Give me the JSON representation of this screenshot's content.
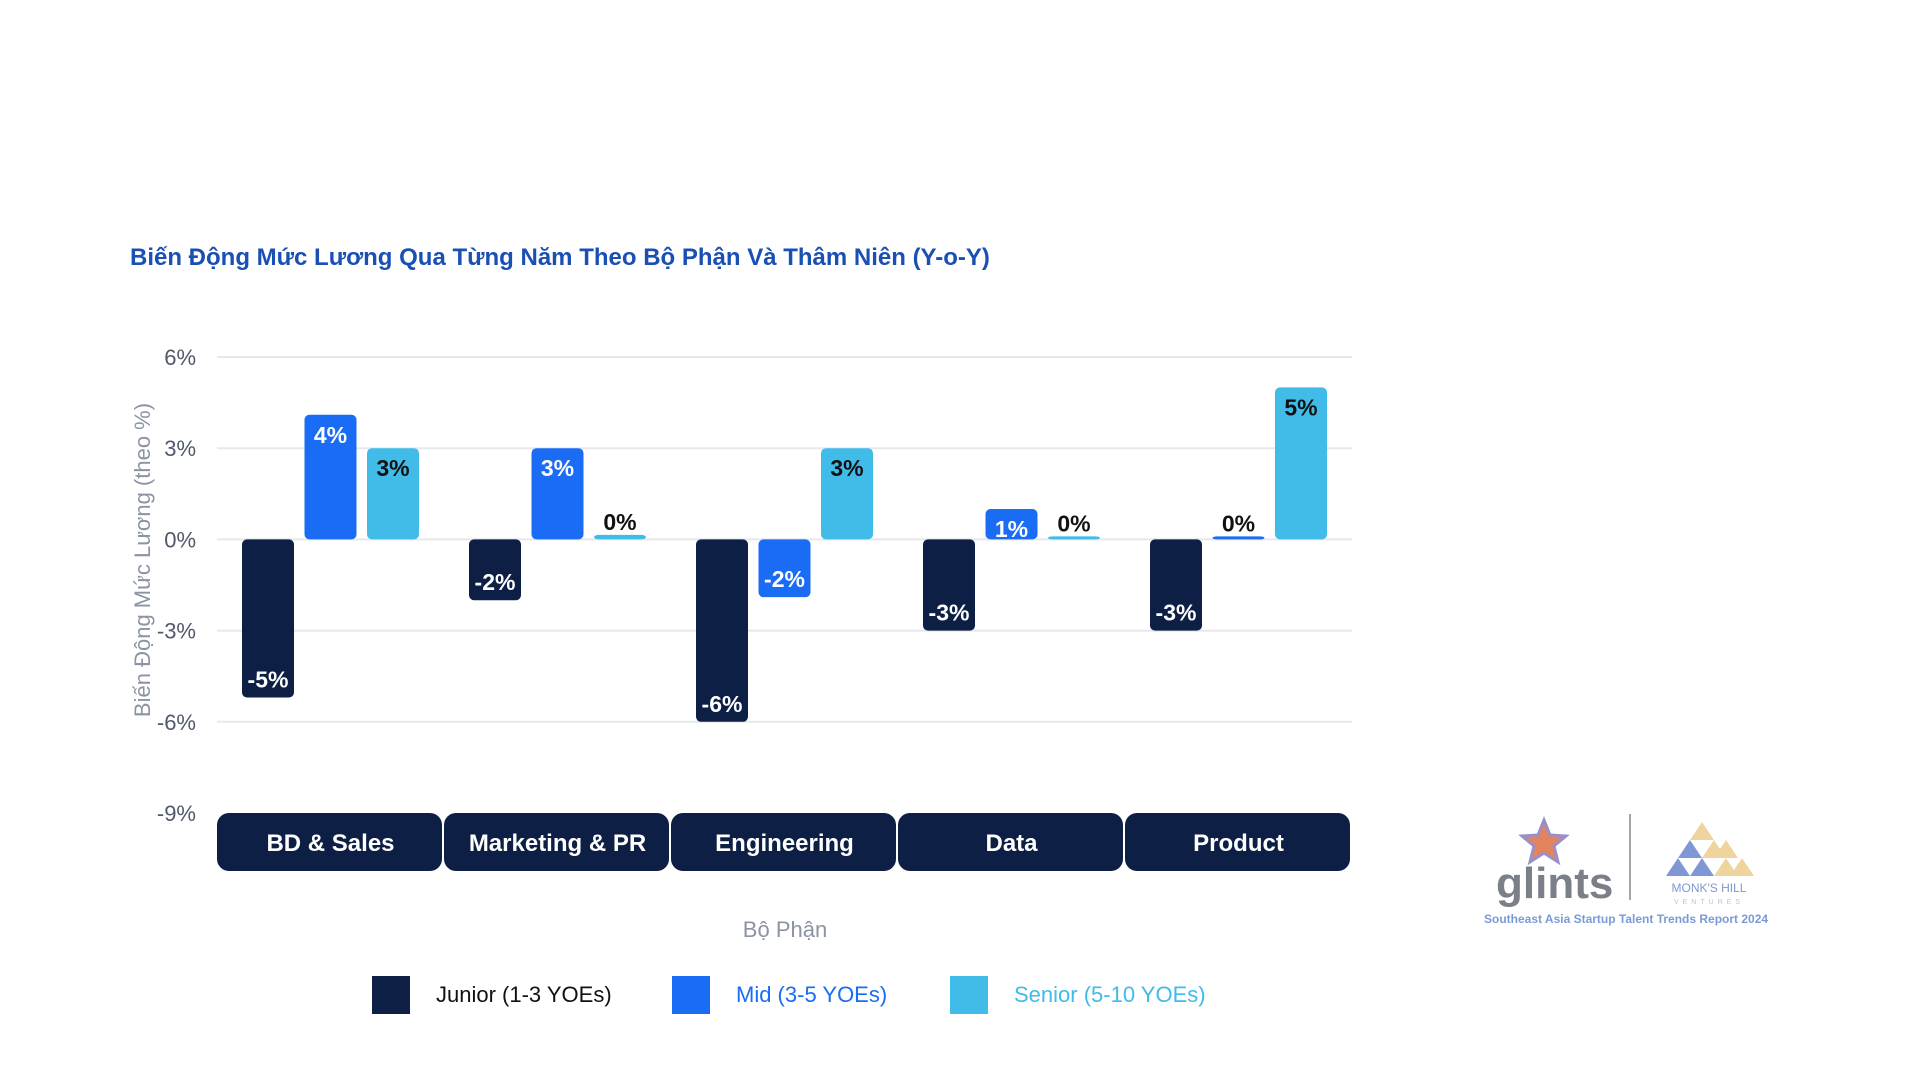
{
  "chart_data": {
    "type": "bar",
    "title": "Biến Động Mức Lương Qua Từng Năm Theo Bộ Phận Và Thâm Niên (Y-o-Y)",
    "xlabel": "Bộ Phận",
    "ylabel": "Biến Động Mức Lương (theo %)",
    "ylim": [
      -9,
      6
    ],
    "yticks": [
      6,
      3,
      0,
      -3,
      -6,
      -9
    ],
    "ytick_labels": [
      "6%",
      "3%",
      "0%",
      "-3%",
      "-6%",
      "-9%"
    ],
    "categories": [
      "BD & Sales",
      "Marketing & PR",
      "Engineering",
      "Data",
      "Product"
    ],
    "series": [
      {
        "name": "Junior (1-3 YOEs)",
        "color": "#0d1f45",
        "values": [
          -5.2,
          -2.0,
          -6.0,
          -3.0,
          -3.0
        ],
        "labels": [
          "-5%",
          "-2%",
          "-6%",
          "-3%",
          "-3%"
        ]
      },
      {
        "name": "Mid (3-5 YOEs)",
        "color": "#1a6cf5",
        "values": [
          4.1,
          3.0,
          -1.9,
          1.0,
          0.1
        ],
        "labels": [
          "4%",
          "3%",
          "-2%",
          "1%",
          "0%"
        ]
      },
      {
        "name": "Senior (5-10 YOEs)",
        "color": "#41bbe8",
        "values": [
          3.0,
          0.15,
          3.0,
          0.1,
          5.0
        ],
        "labels": [
          "3%",
          "0%",
          "3%",
          "0%",
          "5%"
        ]
      }
    ],
    "grid": true,
    "legend": "bottom"
  },
  "branding": {
    "brand_name": "glints",
    "partner_name": "MONK'S HILL",
    "partner_sub": "VENTURES",
    "report_title": "Southeast Asia Startup Talent Trends Report 2024"
  }
}
